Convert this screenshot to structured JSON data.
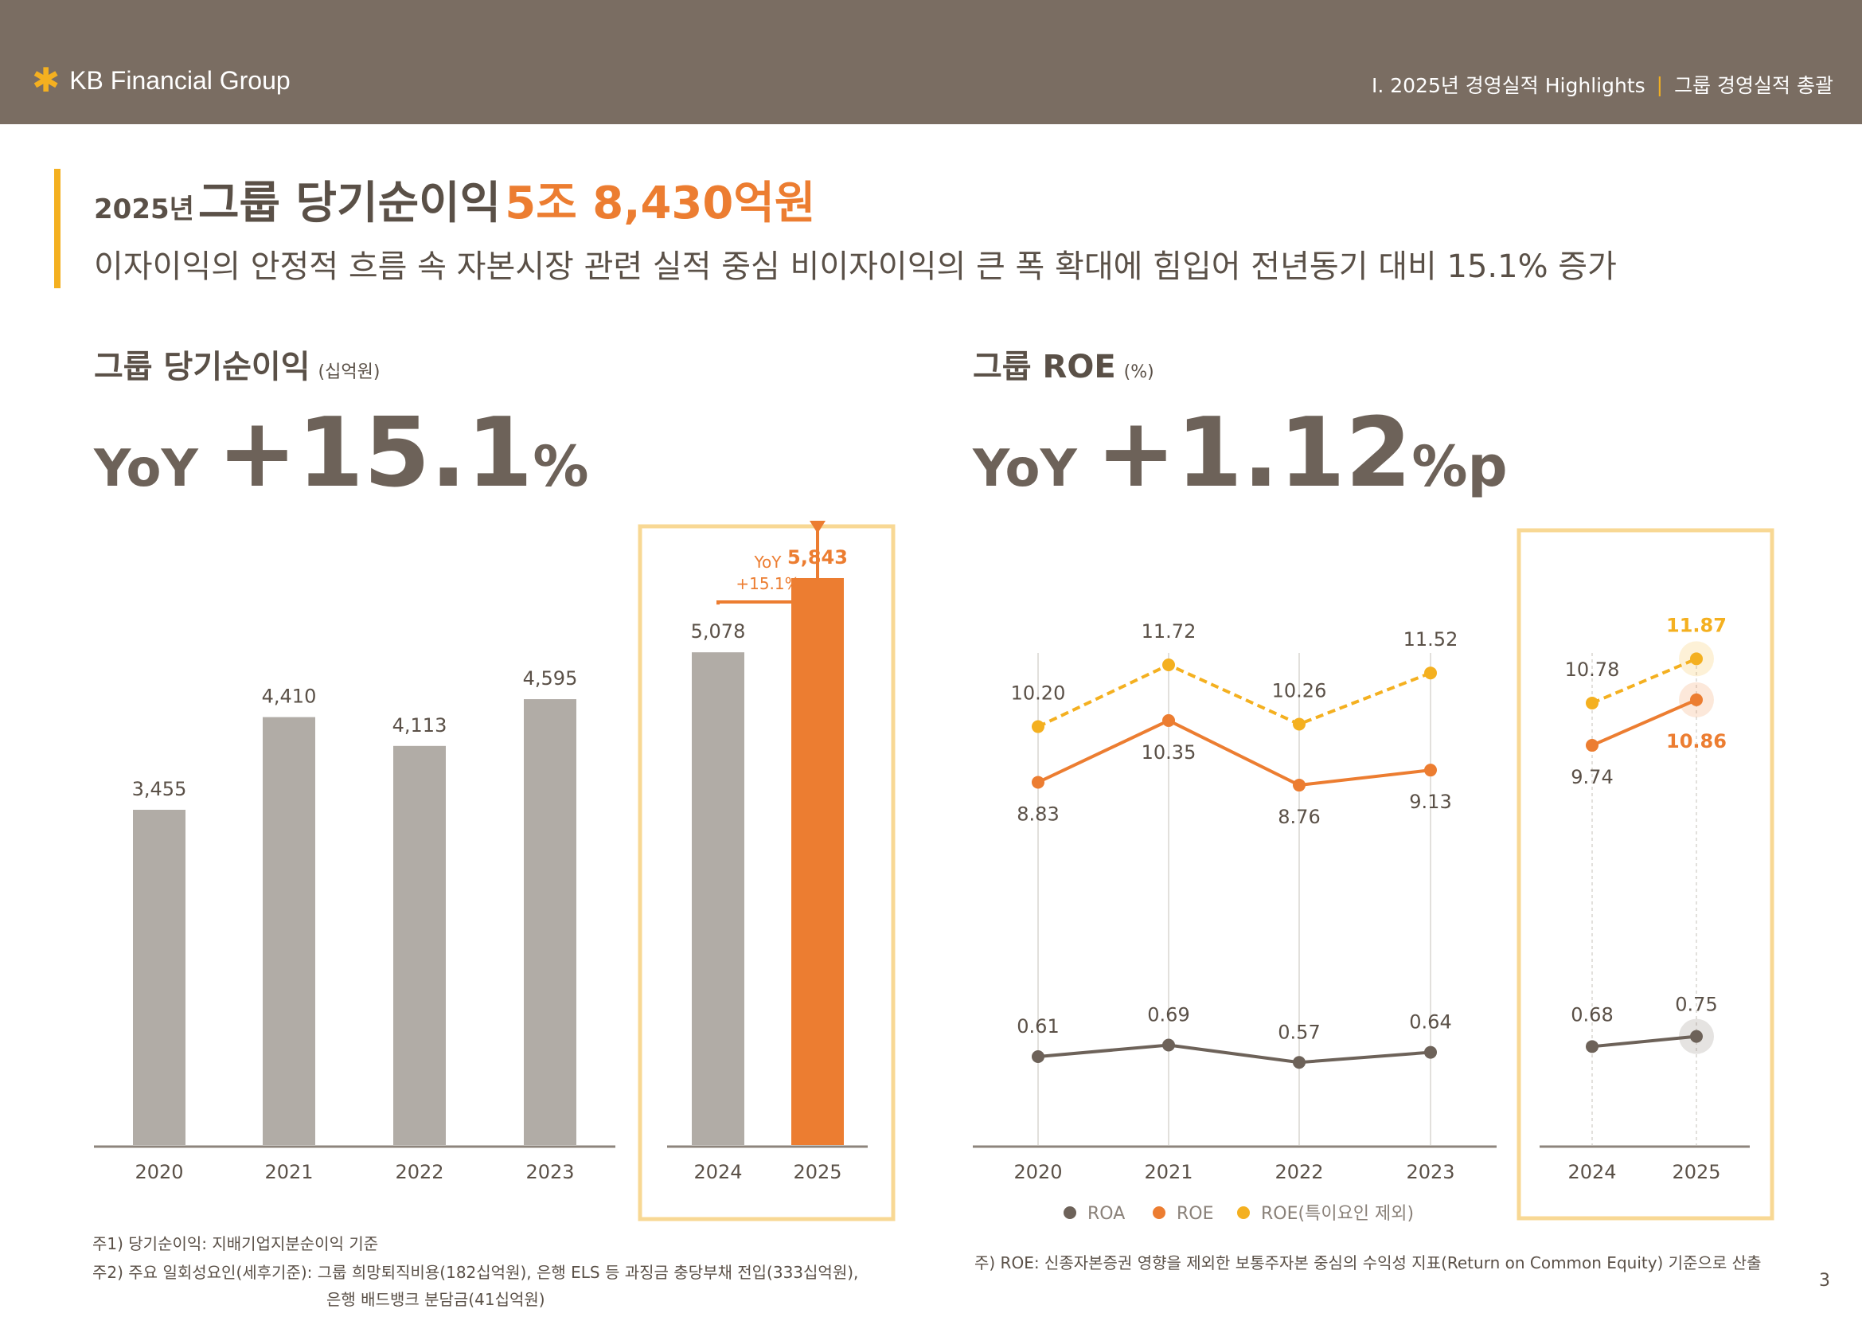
{
  "header": {
    "logo_text": "KB Financial Group",
    "breadcrumb_section": "Ⅰ. 2025년 경영실적 Highlights",
    "breadcrumb_sep": "|",
    "breadcrumb_page": "그룹 경영실적 총괄"
  },
  "headline": {
    "year": "2025년",
    "main": "그룹 당기순이익",
    "amount": "5조 8,430억원",
    "sub": "이자이익의 안정적 흐름 속 자본시장 관련 실적 중심 비이자이익의 큰 폭 확대에 힘입어 전년동기 대비 15.1% 증가"
  },
  "left_panel": {
    "title": "그룹 당기순이익",
    "unit": "(십억원)",
    "yoy_label": "YoY",
    "yoy_value": "+15.1",
    "yoy_unit": "%",
    "callout_line1": "YoY",
    "callout_line2": "+15.1%"
  },
  "right_panel": {
    "title": "그룹 ROE",
    "unit": "(%)",
    "yoy_label": "YoY",
    "yoy_value": "+1.12",
    "yoy_unit": "%p"
  },
  "colors": {
    "header_bg": "#7a6d62",
    "accent_yellow": "#f4b020",
    "highlight_orange": "#ec7d31",
    "bar_gray": "#b1aca6",
    "roa_color": "#6d6259",
    "box_border": "#f8d894"
  },
  "chart_data": [
    {
      "type": "bar",
      "title": "그룹 당기순이익",
      "unit": "(십억원)",
      "categories": [
        "2020",
        "2021",
        "2022",
        "2023",
        "2024",
        "2025"
      ],
      "values": [
        3455,
        4410,
        4113,
        4595,
        5078,
        5843
      ],
      "value_labels": [
        "3,455",
        "4,410",
        "4,113",
        "4,595",
        "5,078",
        "5,843"
      ],
      "highlight": [
        "2024",
        "2025"
      ],
      "ylim": [
        0,
        7000
      ]
    },
    {
      "type": "line",
      "title": "그룹 ROE",
      "unit": "(%)",
      "x": [
        "2020",
        "2021",
        "2022",
        "2023",
        "2024",
        "2025"
      ],
      "series": [
        {
          "name": "ROA",
          "values": [
            0.61,
            0.69,
            0.57,
            0.64,
            0.68,
            0.75
          ],
          "labels": [
            "0.61",
            "0.69",
            "0.57",
            "0.64",
            "0.68",
            "0.75"
          ],
          "color": "#6d6259",
          "style": "solid"
        },
        {
          "name": "ROE",
          "values": [
            8.83,
            10.35,
            8.76,
            9.13,
            9.74,
            10.86
          ],
          "labels": [
            "8.83",
            "10.35",
            "8.76",
            "9.13",
            "9.74",
            "10.86"
          ],
          "color": "#ec7d31",
          "style": "solid"
        },
        {
          "name": "ROE(특이요인 제외)",
          "values": [
            10.2,
            11.72,
            10.26,
            11.52,
            10.78,
            11.87
          ],
          "labels": [
            "10.20",
            "11.72",
            "10.26",
            "11.52",
            "10.78",
            "11.87"
          ],
          "color": "#f4b020",
          "style": "dashed"
        }
      ],
      "highlight": [
        "2024",
        "2025"
      ],
      "legend_position": "bottom"
    }
  ],
  "notes": {
    "left_1": "주1) 당기순이익: 지배기업지분순이익 기준",
    "left_2": "주2) 주요 일회성요인(세후기준): 그룹 희망퇴직비용(182십억원), 은행 ELS 등 과징금 충당부채 전입(333십억원),",
    "left_3": "은행 배드뱅크 분담금(41십억원)",
    "right_1": "주) ROE: 신종자본증권 영향을 제외한 보통주자본 중심의 수익성 지표(Return on Common Equity) 기준으로 산출"
  },
  "page_number": "3"
}
